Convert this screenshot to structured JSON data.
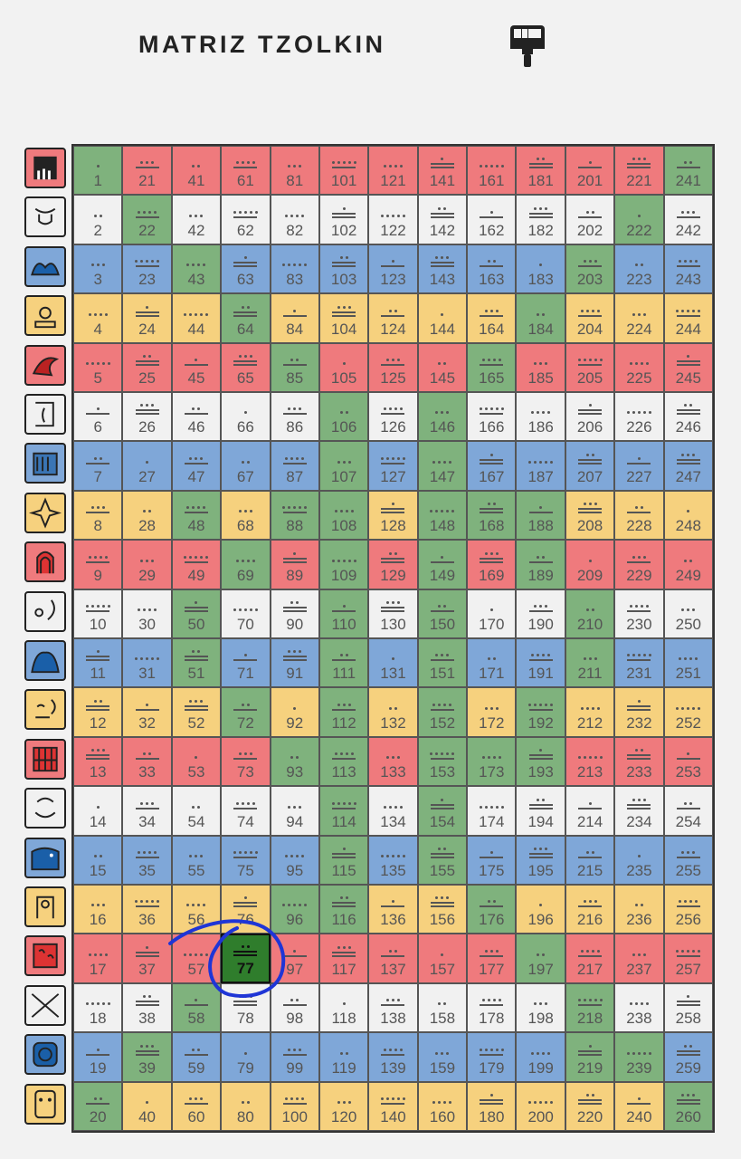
{
  "header": {
    "title": "MATRIZ TZOLKIN",
    "paint_icon": "paint-roller-icon"
  },
  "colors": {
    "red": "#ef7a7d",
    "white": "#f1f1f1",
    "blue": "#7fa7d8",
    "yellow": "#f6d17e",
    "green": "#7fb27d",
    "selected": "#2f7d2c",
    "annotation": "#1f35d6"
  },
  "row_glyphs": [
    {
      "icon": "dragon-seal-icon",
      "color": "red"
    },
    {
      "icon": "wind-seal-icon",
      "color": "white"
    },
    {
      "icon": "night-seal-icon",
      "color": "blue"
    },
    {
      "icon": "seed-seal-icon",
      "color": "yellow"
    },
    {
      "icon": "serpent-seal-icon",
      "color": "red"
    },
    {
      "icon": "worldbridger-seal-icon",
      "color": "white"
    },
    {
      "icon": "hand-seal-icon",
      "color": "blue"
    },
    {
      "icon": "star-seal-icon",
      "color": "yellow"
    },
    {
      "icon": "moon-seal-icon",
      "color": "red"
    },
    {
      "icon": "dog-seal-icon",
      "color": "white"
    },
    {
      "icon": "monkey-seal-icon",
      "color": "blue"
    },
    {
      "icon": "human-seal-icon",
      "color": "yellow"
    },
    {
      "icon": "skywalker-seal-icon",
      "color": "red"
    },
    {
      "icon": "wizard-seal-icon",
      "color": "white"
    },
    {
      "icon": "eagle-seal-icon",
      "color": "blue"
    },
    {
      "icon": "warrior-seal-icon",
      "color": "yellow"
    },
    {
      "icon": "earth-seal-icon",
      "color": "red"
    },
    {
      "icon": "mirror-seal-icon",
      "color": "white"
    },
    {
      "icon": "storm-seal-icon",
      "color": "blue"
    },
    {
      "icon": "sun-seal-icon",
      "color": "yellow"
    }
  ],
  "grid": {
    "columns": 13,
    "rows": 20,
    "first_kin": 1,
    "last_kin": 260,
    "row_colors": [
      "red",
      "white",
      "blue",
      "yellow",
      "red",
      "white",
      "blue",
      "yellow",
      "red",
      "white",
      "blue",
      "yellow",
      "red",
      "white",
      "blue",
      "yellow",
      "red",
      "white",
      "blue",
      "yellow"
    ],
    "green_kins": [
      1,
      22,
      43,
      64,
      85,
      106,
      107,
      108,
      109,
      110,
      111,
      112,
      113,
      114,
      115,
      96,
      77,
      58,
      39,
      20,
      241,
      222,
      203,
      184,
      165,
      146,
      147,
      148,
      149,
      150,
      151,
      152,
      153,
      154,
      155,
      176,
      197,
      218,
      239,
      260,
      51,
      50,
      72,
      69,
      88,
      93,
      116,
      173,
      168,
      188,
      189,
      192,
      211,
      210,
      219,
      193,
      148,
      48
    ],
    "selected_kin": 77
  },
  "annotation": {
    "type": "hand-drawn-circle",
    "target_kin": 77
  }
}
